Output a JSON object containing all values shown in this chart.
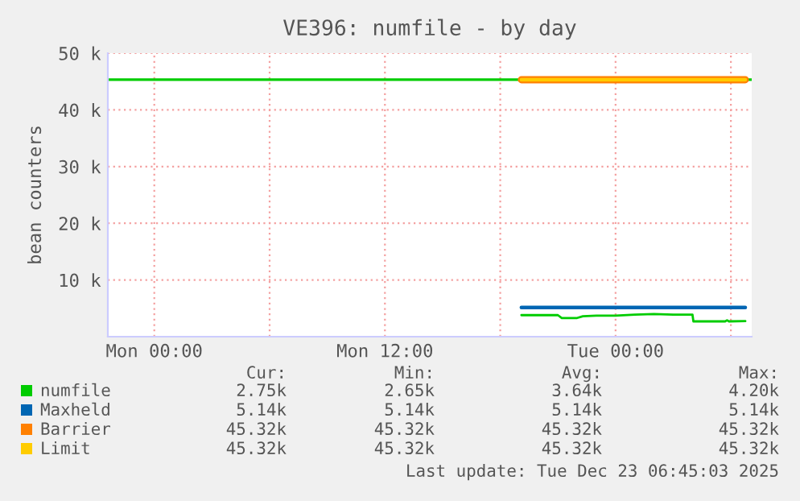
{
  "chart_data": {
    "type": "line",
    "title": "VE396: numfile - by day",
    "ylabel": "bean counters",
    "xlim": [
      "2025-12-21T21:35",
      "2025-12-23T07:05"
    ],
    "ylim": [
      0,
      50000
    ],
    "xticks": [
      {
        "value": "2025-12-22T00:00",
        "label": "Mon 00:00"
      },
      {
        "value": "2025-12-22T06:00",
        "label": null
      },
      {
        "value": "2025-12-22T12:00",
        "label": "Mon 12:00"
      },
      {
        "value": "2025-12-22T18:00",
        "label": null
      },
      {
        "value": "2025-12-23T00:00",
        "label": "Tue 00:00"
      },
      {
        "value": "2025-12-23T06:00",
        "label": null
      }
    ],
    "yticks": [
      {
        "value": 10000,
        "label": "10 k"
      },
      {
        "value": 20000,
        "label": "20 k"
      },
      {
        "value": 30000,
        "label": "30 k"
      },
      {
        "value": 40000,
        "label": "40 k"
      },
      {
        "value": 50000,
        "label": "50 k"
      }
    ],
    "grid": true,
    "legend": "bottom",
    "ref_lines": [
      {
        "axis": "y",
        "value": 45320,
        "color": "#00cc00"
      }
    ],
    "series": [
      {
        "name": "numfile",
        "color": "#00cc00",
        "x": [
          "2025-12-22T19:06",
          "2025-12-22T21:00",
          "2025-12-22T21:12",
          "2025-12-22T22:00",
          "2025-12-22T22:18",
          "2025-12-22T23:00",
          "2025-12-23T00:00",
          "2025-12-23T01:00",
          "2025-12-23T02:00",
          "2025-12-23T03:00",
          "2025-12-23T04:00",
          "2025-12-23T04:03",
          "2025-12-23T05:42",
          "2025-12-23T05:48",
          "2025-12-23T05:54",
          "2025-12-23T06:45"
        ],
        "values": [
          3800,
          3800,
          3300,
          3300,
          3600,
          3700,
          3700,
          3900,
          4000,
          3900,
          3900,
          2700,
          2700,
          2900,
          2700,
          2750
        ]
      },
      {
        "name": "Maxheld",
        "color": "#0066b3",
        "x": [
          "2025-12-22T19:06",
          "2025-12-23T06:45"
        ],
        "values": [
          5140,
          5140
        ]
      },
      {
        "name": "Barrier",
        "color": "#ff8000",
        "x": [
          "2025-12-22T19:06",
          "2025-12-23T06:45"
        ],
        "values": [
          45320,
          45320
        ]
      },
      {
        "name": "Limit",
        "color": "#ffcc00",
        "x": [
          "2025-12-22T19:06",
          "2025-12-23T06:45"
        ],
        "values": [
          45320,
          45320
        ]
      }
    ],
    "annotations": [
      "Cur:",
      "Min:",
      "Avg:",
      "Max:",
      "2.75k",
      "2.65k",
      "3.64k",
      "4.20k",
      "5.14k",
      "5.14k",
      "5.14k",
      "5.14k",
      "45.32k",
      "45.32k",
      "45.32k",
      "45.32k",
      "45.32k",
      "45.32k",
      "45.32k",
      "45.32k",
      "Last update: Tue Dec 23 06:45:03 2025"
    ]
  }
}
